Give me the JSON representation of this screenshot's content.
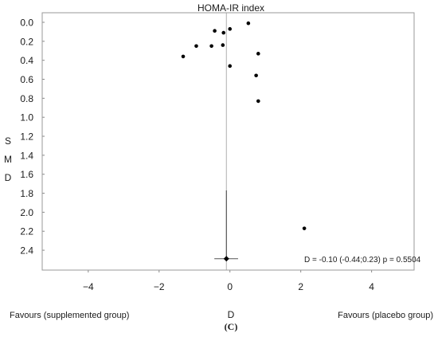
{
  "chart_data": {
    "type": "scatter",
    "title": "HOMA-IR index",
    "xlabel": "D",
    "ylabel": "SMD",
    "xlim": [
      -5.3,
      5.2
    ],
    "ylim": [
      0.0,
      2.5
    ],
    "y_inverted": true,
    "x_ticks": [
      -4,
      -2,
      0,
      2,
      4
    ],
    "y_ticks": [
      "0.0",
      "0.2",
      "0.4",
      "0.6",
      "0.8",
      "1.0",
      "1.2",
      "1.4",
      "1.6",
      "1.8",
      "2.0",
      "2.2",
      "2.4"
    ],
    "points": [
      {
        "x": 0.52,
        "y": 0.01
      },
      {
        "x": 0.0,
        "y": 0.07
      },
      {
        "x": -0.43,
        "y": 0.09
      },
      {
        "x": -0.18,
        "y": 0.11
      },
      {
        "x": -0.2,
        "y": 0.24
      },
      {
        "x": -0.52,
        "y": 0.25
      },
      {
        "x": -0.95,
        "y": 0.25
      },
      {
        "x": -1.32,
        "y": 0.36
      },
      {
        "x": 0.8,
        "y": 0.33
      },
      {
        "x": 0.0,
        "y": 0.46
      },
      {
        "x": 0.74,
        "y": 0.56
      },
      {
        "x": 0.8,
        "y": 0.83
      },
      {
        "x": 2.1,
        "y": 2.17
      }
    ],
    "pooled": {
      "d": -0.1,
      "ci": [
        -0.44,
        0.23
      ],
      "y": 2.49,
      "whisker_y": [
        1.77,
        2.47
      ]
    },
    "annotation": "D = -0.10 (-0.44;0.23) p = 0.5504",
    "left_label": "Favours (supplemented group)",
    "right_label": "Favours (placebo group)",
    "caption": "(C)"
  }
}
